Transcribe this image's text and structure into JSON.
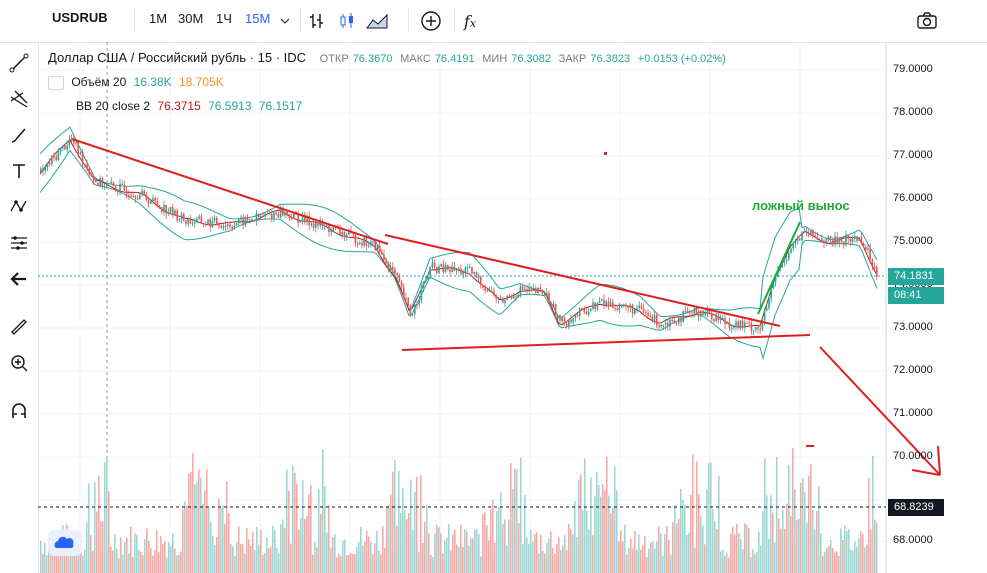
{
  "toolbar": {
    "symbol": "USDRUB",
    "intervals": [
      "1M",
      "30M",
      "1Ч",
      "15M"
    ],
    "active_interval": "15M"
  },
  "legend": {
    "title": "Доллар США / Российский рубль · 15 · IDC",
    "open_label": "ОТКР",
    "open": "76.3670",
    "high_label": "МАКС",
    "high": "76.4191",
    "low_label": "МИН",
    "low": "76.3082",
    "close_label": "ЗАКР",
    "close": "76.3823",
    "change": "+0.0153 (+0.02%)",
    "volume_label": "Объём 20",
    "volume_a": "16.38K",
    "volume_b": "18.705K",
    "bb_label": "BB 20 close 2",
    "bb_mid": "76.3715",
    "bb_up": "76.5913",
    "bb_low": "76.1517"
  },
  "price_axis": [
    "79.0000",
    "78.0000",
    "77.0000",
    "76.0000",
    "75.0000",
    "74.0000",
    "73.0000",
    "72.0000",
    "71.0000",
    "70.0000",
    "68.0000"
  ],
  "current_price_tag": "74.1831",
  "countdown_tag": "08:41",
  "volume_price_tag": "68.8239",
  "annotation": "ложный вынос",
  "colors": {
    "up": "#26a69a",
    "down": "#ef5350",
    "trend": "#e01e1e",
    "accent": "#2962ff"
  },
  "icons": [
    "crosshair-icon",
    "trendline-icon",
    "pitchfork-icon",
    "brush-icon",
    "text-icon",
    "pattern-icon",
    "forecast-icon",
    "back-arrow-icon",
    "ruler-icon",
    "zoom-icon",
    "magnet-icon",
    "indicators-icon",
    "fx-icon",
    "camera-icon",
    "add-icon"
  ]
}
